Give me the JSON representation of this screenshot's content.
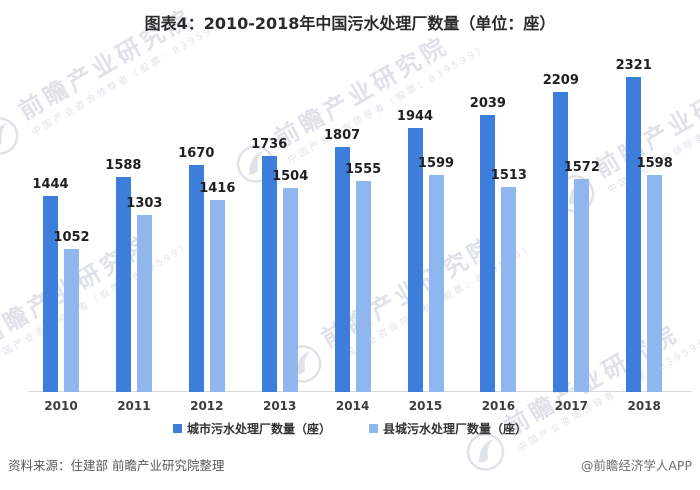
{
  "title": "图表4：2010-2018年中国污水处理厂数量（单位：座）",
  "chart_data": {
    "type": "bar",
    "title": "图表4：2010-2018年中国污水处理厂数量（单位：座）",
    "categories": [
      "2010",
      "2011",
      "2012",
      "2013",
      "2014",
      "2015",
      "2016",
      "2017",
      "2018"
    ],
    "series": [
      {
        "name": "城市污水处理厂数量（座）",
        "color": "#3D7EDD",
        "values": [
          1444,
          1588,
          1670,
          1736,
          1807,
          1944,
          2039,
          2209,
          2321
        ]
      },
      {
        "name": "县城污水处理厂数量（座）",
        "color": "#8FB7ED",
        "values": [
          1052,
          1303,
          1416,
          1504,
          1555,
          1599,
          1513,
          1572,
          1598
        ]
      }
    ],
    "ylim": [
      0,
      2400
    ],
    "grid": false,
    "value_labels": true,
    "legend_position": "bottom"
  },
  "watermark": {
    "brand": "前瞻产业研究院",
    "tagline": "中国产业咨询领导者（股票：839599）"
  },
  "footer": {
    "source": "资料来源：住建部 前瞻产业研究院整理",
    "credit": "@前瞻经济学人APP"
  },
  "colors": {
    "bar_primary": "#3D7EDD",
    "bar_secondary": "#8FB7ED",
    "axis_line": "#D9D9D9",
    "value_label": "#1F1F1F",
    "footer_text": "#595959"
  }
}
